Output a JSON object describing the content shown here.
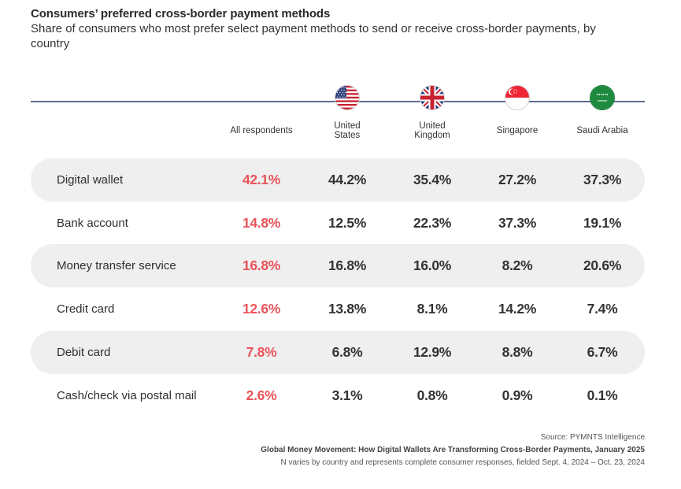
{
  "header": {
    "title": "Consumers’ preferred cross-border payment methods",
    "subtitle": "Share of consumers who most prefer select payment methods to send or receive cross-border payments, by country"
  },
  "columns": [
    {
      "label": "All respondents",
      "flag": null
    },
    {
      "label": "United States",
      "line1": "United",
      "line2": "States",
      "flag": "us-flag-icon"
    },
    {
      "label": "United Kingdom",
      "line1": "United",
      "line2": "Kingdom",
      "flag": "uk-flag-icon"
    },
    {
      "label": "Singapore",
      "flag": "singapore-flag-icon"
    },
    {
      "label": "Saudi Arabia",
      "flag": "saudi-arabia-flag-icon"
    }
  ],
  "colors": {
    "highlight": "#e8545a",
    "row_shade": "#efefef",
    "rule": "#5d6d8e",
    "text": "#333333"
  },
  "chart_data": {
    "type": "table",
    "title": "Consumers’ preferred cross-border payment methods",
    "subtitle": "Share of consumers who most prefer select payment methods to send or receive cross-border payments, by country",
    "unit": "%",
    "columns": [
      "All respondents",
      "United States",
      "United Kingdom",
      "Singapore",
      "Saudi Arabia"
    ],
    "rows": [
      {
        "label": "Digital wallet",
        "values": [
          42.1,
          44.2,
          35.4,
          27.2,
          37.3
        ],
        "display": [
          "42.1%",
          "44.2%",
          "35.4%",
          "27.2%",
          "37.3%"
        ]
      },
      {
        "label": "Bank account",
        "values": [
          14.8,
          12.5,
          22.3,
          37.3,
          19.1
        ],
        "display": [
          "14.8%",
          "12.5%",
          "22.3%",
          "37.3%",
          "19.1%"
        ]
      },
      {
        "label": "Money transfer service",
        "values": [
          16.8,
          16.8,
          16.0,
          8.2,
          20.6
        ],
        "display": [
          "16.8%",
          "16.8%",
          "16.0%",
          "8.2%",
          "20.6%"
        ]
      },
      {
        "label": "Credit card",
        "values": [
          12.6,
          13.8,
          8.1,
          14.2,
          7.4
        ],
        "display": [
          "12.6%",
          "13.8%",
          "8.1%",
          "14.2%",
          "7.4%"
        ]
      },
      {
        "label": "Debit card",
        "values": [
          7.8,
          6.8,
          12.9,
          8.8,
          6.7
        ],
        "display": [
          "7.8%",
          "6.8%",
          "12.9%",
          "8.8%",
          "6.7%"
        ]
      },
      {
        "label": "Cash/check via postal mail",
        "values": [
          2.6,
          3.1,
          0.8,
          0.9,
          0.1
        ],
        "display": [
          "2.6%",
          "3.1%",
          "0.8%",
          "0.9%",
          "0.1%"
        ]
      }
    ],
    "highlight_column": "All respondents"
  },
  "footer": {
    "source": "Source: PYMNTS Intelligence",
    "report": "Global Money Movement: How Digital Wallets Are Transforming Cross-Border Payments, January 2025",
    "note": "N varies by country and represents complete consumer responses, fielded Sept. 4, 2024 – Oct. 23, 2024"
  }
}
